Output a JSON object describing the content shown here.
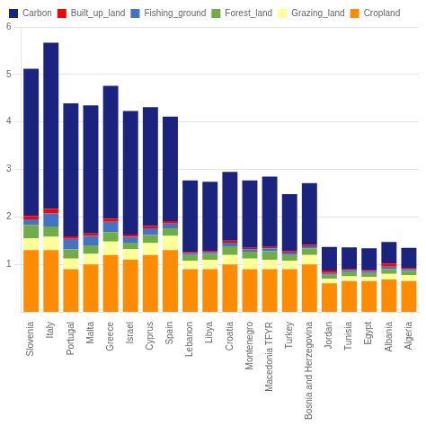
{
  "chart_data": {
    "type": "bar",
    "stacked": true,
    "categories": [
      "Slovenia",
      "Italy",
      "Portugal",
      "Malta",
      "Greece",
      "Israel",
      "Cyprus",
      "Spain",
      "Lebanon",
      "Libya",
      "Croatia",
      "Montenegro",
      "Macedonia TFYR",
      "Turkey",
      "Bosnia and Herzegovina",
      "Jordan",
      "Tunisia",
      "Egypt",
      "Albania",
      "Algeria"
    ],
    "series": [
      {
        "name": "Cropland",
        "color": "#FF8C00",
        "values": [
          1.3,
          1.3,
          0.9,
          1.0,
          1.2,
          1.1,
          1.2,
          1.3,
          0.9,
          0.9,
          1.0,
          0.9,
          0.9,
          0.9,
          1.0,
          0.6,
          0.65,
          0.65,
          0.68,
          0.65
        ]
      },
      {
        "name": "Grazing_land",
        "color": "#FFFF99",
        "values": [
          0.25,
          0.28,
          0.22,
          0.22,
          0.28,
          0.22,
          0.25,
          0.3,
          0.18,
          0.2,
          0.2,
          0.22,
          0.2,
          0.18,
          0.2,
          0.1,
          0.1,
          0.09,
          0.12,
          0.12
        ]
      },
      {
        "name": "Forest_land",
        "color": "#70AD47",
        "values": [
          0.28,
          0.22,
          0.2,
          0.18,
          0.2,
          0.14,
          0.17,
          0.16,
          0.12,
          0.12,
          0.18,
          0.15,
          0.18,
          0.12,
          0.14,
          0.08,
          0.09,
          0.08,
          0.1,
          0.09
        ]
      },
      {
        "name": "Fishing_ground",
        "color": "#4472C4",
        "values": [
          0.12,
          0.28,
          0.22,
          0.2,
          0.22,
          0.12,
          0.14,
          0.1,
          0.04,
          0.04,
          0.08,
          0.05,
          0.06,
          0.05,
          0.04,
          0.04,
          0.04,
          0.04,
          0.05,
          0.04
        ]
      },
      {
        "name": "Built_up_land",
        "color": "#FF0000",
        "values": [
          0.07,
          0.09,
          0.05,
          0.05,
          0.06,
          0.05,
          0.05,
          0.05,
          0.03,
          0.03,
          0.04,
          0.03,
          0.03,
          0.03,
          0.03,
          0.05,
          0.03,
          0.03,
          0.07,
          0.03
        ]
      },
      {
        "name": "Carbon",
        "color": "#1A237E",
        "values": [
          3.1,
          3.5,
          2.8,
          2.7,
          2.8,
          2.6,
          2.5,
          2.2,
          1.5,
          1.45,
          1.45,
          1.42,
          1.48,
          1.2,
          1.3,
          0.5,
          0.45,
          0.45,
          0.45,
          0.42
        ]
      }
    ],
    "ylim": [
      0,
      6.0
    ],
    "yticks": [
      1,
      2,
      3,
      4,
      5,
      6
    ],
    "grid": true,
    "legend": "upper left"
  }
}
